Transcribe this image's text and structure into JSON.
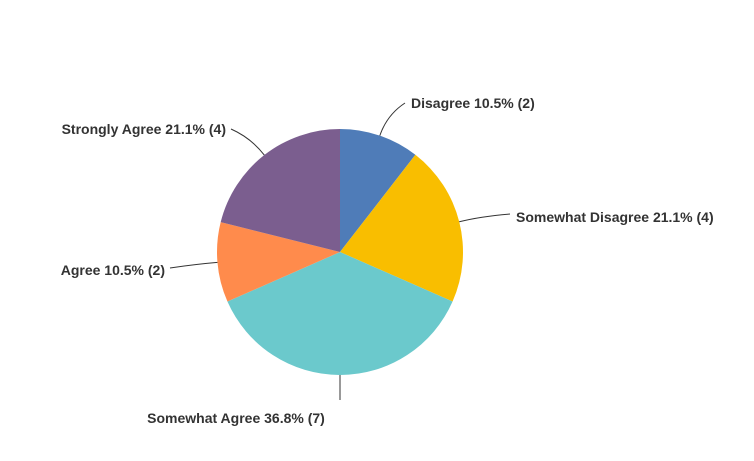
{
  "chart_data": {
    "type": "pie",
    "start": "top",
    "direction": "clockwise",
    "slices": [
      {
        "label": "Disagree",
        "percent": 10.5,
        "count": 2,
        "color": "#4f7cb8",
        "text": "Disagree 10.5% (2)"
      },
      {
        "label": "Somewhat Disagree",
        "percent": 21.1,
        "count": 4,
        "color": "#f9be00",
        "text": "Somewhat Disagree 21.1% (4)"
      },
      {
        "label": "Somewhat Agree",
        "percent": 36.8,
        "count": 7,
        "color": "#6bc9cc",
        "text": "Somewhat Agree 36.8% (7)"
      },
      {
        "label": "Agree",
        "percent": 10.5,
        "count": 2,
        "color": "#ff8b4c",
        "text": "Agree 10.5% (2)"
      },
      {
        "label": "Strongly Agree",
        "percent": 21.1,
        "count": 4,
        "color": "#7b5e8f",
        "text": "Strongly Agree 21.1% (4)"
      }
    ]
  }
}
